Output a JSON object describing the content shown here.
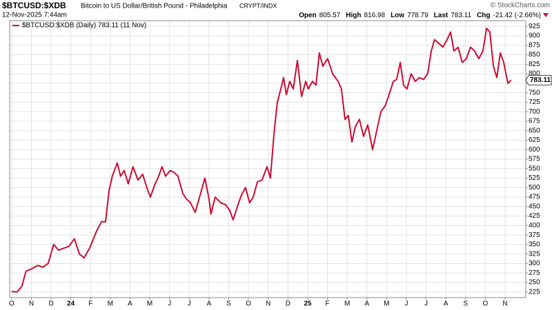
{
  "chart_data": {
    "type": "line",
    "title": "$BTCUSD:$XDB",
    "subtitle": "Bitcoin to US Dollar/British Pound - Philadelphia",
    "exchange": "CRYPT/INDX",
    "timestamp": "12-Nov-2025 7:44am",
    "copyright": "© StockCharts.com",
    "stats": [
      {
        "label": "Open",
        "value": 805.57
      },
      {
        "label": "High",
        "value": 816.98
      },
      {
        "label": "Low",
        "value": 778.79
      },
      {
        "label": "Last",
        "value": 783.11
      },
      {
        "label": "Chg",
        "value": "-21.42 (-2.66%)"
      }
    ],
    "x": [
      0,
      0.28,
      0.52,
      0.73,
      0.98,
      1.33,
      1.57,
      1.85,
      2.13,
      2.38,
      2.62,
      2.9,
      3.18,
      3.43,
      3.67,
      3.95,
      4.3,
      4.55,
      4.76,
      4.93,
      5.1,
      5.35,
      5.52,
      5.7,
      5.91,
      6.15,
      6.4,
      6.64,
      6.85,
      7.03,
      7.27,
      7.45,
      7.62,
      7.8,
      8.04,
      8.22,
      8.43,
      8.67,
      8.85,
      9.06,
      9.3,
      9.55,
      9.79,
      10.0,
      10.1,
      10.31,
      10.59,
      10.84,
      11.05,
      11.22,
      11.47,
      11.64,
      11.85,
      12.06,
      12.24,
      12.45,
      12.69,
      12.94,
      13.11,
      13.29,
      13.46,
      13.64,
      13.78,
      13.92,
      14.09,
      14.27,
      14.48,
      14.69,
      14.9,
      15.03,
      15.24,
      15.42,
      15.59,
      15.77,
      16.01,
      16.26,
      16.54,
      16.71,
      16.89,
      17.06,
      17.24,
      17.41,
      17.62,
      17.83,
      18.04,
      18.29,
      18.5,
      18.71,
      18.92,
      19.09,
      19.34,
      19.51,
      19.69,
      19.86,
      20.03,
      20.24,
      20.45,
      20.66,
      20.87,
      21.08,
      21.26,
      21.43,
      21.64,
      21.85,
      22.06,
      22.24,
      22.41,
      22.62,
      22.83,
      23.04,
      23.25,
      23.46,
      23.67,
      23.88,
      24.06,
      24.23,
      24.41,
      24.58,
      24.76,
      24.93,
      25.14,
      25.31
    ],
    "series": [
      {
        "name": "$BTCUSD:$XDB (Daily) 783.11 (11 Nov)",
        "color": "#cc0a32",
        "values": [
          226,
          225,
          240,
          280,
          285,
          295,
          290,
          300,
          350,
          335,
          340,
          345,
          365,
          325,
          315,
          340,
          385,
          410,
          410,
          490,
          530,
          565,
          530,
          545,
          510,
          555,
          520,
          535,
          500,
          475,
          510,
          530,
          555,
          530,
          545,
          540,
          530,
          485,
          470,
          460,
          435,
          480,
          525,
          470,
          430,
          475,
          460,
          455,
          440,
          415,
          455,
          480,
          500,
          460,
          475,
          515,
          520,
          555,
          525,
          640,
          725,
          760,
          790,
          745,
          780,
          760,
          835,
          740,
          780,
          760,
          780,
          770,
          855,
          820,
          840,
          800,
          780,
          760,
          680,
          690,
          620,
          660,
          680,
          635,
          665,
          600,
          650,
          700,
          715,
          740,
          780,
          785,
          830,
          770,
          760,
          800,
          780,
          790,
          785,
          800,
          860,
          890,
          880,
          870,
          890,
          910,
          860,
          870,
          830,
          840,
          870,
          860,
          840,
          860,
          920,
          910,
          820,
          790,
          855,
          830,
          775,
          783.11
        ]
      }
    ],
    "xlim": [
      -0.1,
      26.05
    ],
    "xticks": [
      {
        "value": 0,
        "label": "O"
      },
      {
        "value": 1,
        "label": "N"
      },
      {
        "value": 2,
        "label": "D"
      },
      {
        "value": 3,
        "label": "24"
      },
      {
        "value": 4,
        "label": "F"
      },
      {
        "value": 5,
        "label": "M"
      },
      {
        "value": 6,
        "label": "A"
      },
      {
        "value": 7,
        "label": "M"
      },
      {
        "value": 8,
        "label": "J"
      },
      {
        "value": 9,
        "label": "J"
      },
      {
        "value": 10,
        "label": "A"
      },
      {
        "value": 11,
        "label": "S"
      },
      {
        "value": 12,
        "label": "O"
      },
      {
        "value": 13,
        "label": "N"
      },
      {
        "value": 14,
        "label": "D"
      },
      {
        "value": 15,
        "label": "25"
      },
      {
        "value": 16,
        "label": "F"
      },
      {
        "value": 17,
        "label": "M"
      },
      {
        "value": 18,
        "label": "A"
      },
      {
        "value": 19,
        "label": "M"
      },
      {
        "value": 20,
        "label": "J"
      },
      {
        "value": 21,
        "label": "J"
      },
      {
        "value": 22,
        "label": "A"
      },
      {
        "value": 23,
        "label": "S"
      },
      {
        "value": 24,
        "label": "O"
      },
      {
        "value": 25,
        "label": "N"
      }
    ],
    "ylim": [
      210,
      940
    ],
    "yticks": [
      225,
      250,
      275,
      300,
      325,
      350,
      375,
      400,
      425,
      450,
      475,
      500,
      525,
      550,
      575,
      600,
      625,
      650,
      675,
      700,
      725,
      750,
      775,
      800,
      825,
      850,
      875,
      900,
      925
    ],
    "grid": true
  }
}
